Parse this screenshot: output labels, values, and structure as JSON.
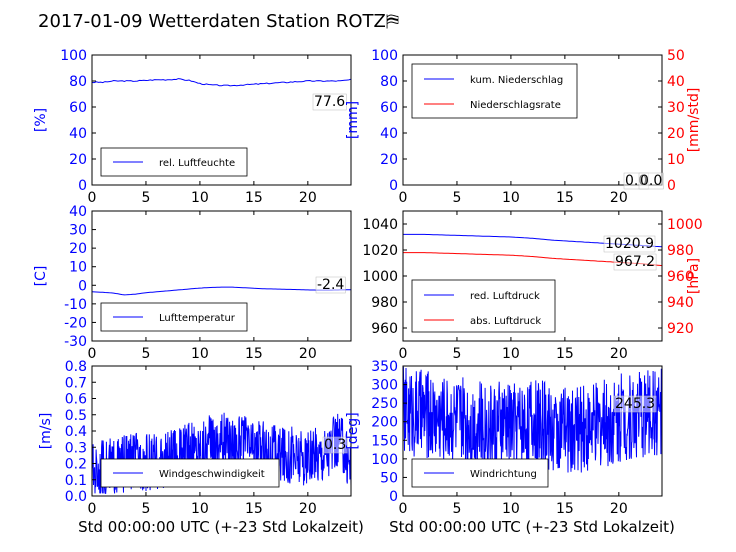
{
  "page": {
    "title": "2017-01-09 Wetterdaten Station ROTZ⛿",
    "xlabel": "Std 00:00:00 UTC (+-23 Std Lokalzeit)"
  },
  "colors": {
    "primary": "#0000ff",
    "secondary": "#ff0000",
    "axis": "#000000"
  },
  "chart_data": [
    {
      "type": "line",
      "ylabel": "[%]",
      "xlim": [
        0,
        24
      ],
      "ylim": [
        0,
        100
      ],
      "xticks": [
        0,
        5,
        10,
        15,
        20
      ],
      "yticks": [
        0,
        20,
        40,
        60,
        80,
        100
      ],
      "grid": false,
      "legend": "bottom-left",
      "series": [
        {
          "name": "rel. Luftfeuchte",
          "color": "#0000ff",
          "x": [
            0,
            1,
            2,
            3,
            4,
            5,
            6,
            7,
            8,
            9,
            10,
            11,
            12,
            13,
            14,
            15,
            16,
            17,
            18,
            19,
            20,
            21,
            22,
            23,
            24
          ],
          "y": [
            79,
            79,
            80,
            80,
            80,
            80.5,
            81,
            81,
            81.5,
            80.5,
            78,
            77,
            76.5,
            76.5,
            77,
            77.5,
            78,
            78.5,
            79,
            79.5,
            80,
            80,
            80,
            80,
            81
          ]
        }
      ],
      "annotations": [
        "77.6"
      ]
    },
    {
      "type": "line",
      "ylabel": "[mm]",
      "ylabel_right": "[mm/std]",
      "xlim": [
        0,
        24
      ],
      "ylim": [
        0,
        100
      ],
      "ylim_right": [
        0,
        50
      ],
      "xticks": [
        0,
        5,
        10,
        15,
        20
      ],
      "yticks": [
        0,
        20,
        40,
        60,
        80,
        100
      ],
      "yticks_right": [
        0,
        10,
        20,
        30,
        40,
        50
      ],
      "grid": false,
      "legend": "top-left",
      "series": [
        {
          "name": "kum. Niederschlag",
          "color": "#0000ff",
          "x": [
            0,
            24
          ],
          "y": [
            0,
            0
          ]
        },
        {
          "name": "Niederschlagsrate",
          "color": "#ff0000",
          "x": [
            0,
            24
          ],
          "y": [
            0,
            0
          ],
          "axis": "right"
        }
      ],
      "annotations": [
        "0.0",
        "0.0"
      ]
    },
    {
      "type": "line",
      "ylabel": "[C]",
      "xlim": [
        0,
        24
      ],
      "ylim": [
        -30,
        40
      ],
      "xticks": [
        0,
        5,
        10,
        15,
        20
      ],
      "yticks": [
        -30,
        -20,
        -10,
        0,
        10,
        20,
        30,
        40
      ],
      "grid": false,
      "legend": "bottom-left",
      "series": [
        {
          "name": "Lufttemperatur",
          "color": "#0000ff",
          "x": [
            0,
            1,
            2,
            3,
            4,
            5,
            6,
            7,
            8,
            9,
            10,
            11,
            12,
            13,
            14,
            15,
            16,
            17,
            18,
            19,
            20,
            21,
            22,
            23,
            24
          ],
          "y": [
            -3.5,
            -3.8,
            -4.2,
            -5.2,
            -4.8,
            -4.0,
            -3.5,
            -3.0,
            -2.5,
            -2.0,
            -1.5,
            -1.2,
            -1.0,
            -1.0,
            -1.3,
            -1.6,
            -1.9,
            -2.0,
            -2.2,
            -2.3,
            -2.5,
            -2.6,
            -2.6,
            -2.5,
            -2.4
          ]
        }
      ],
      "annotations": [
        "-2.4"
      ]
    },
    {
      "type": "line",
      "ylabel_right": "[hPa]",
      "xlim": [
        0,
        24
      ],
      "ylim": [
        950,
        1050
      ],
      "ylim_right": [
        910,
        1010
      ],
      "xticks": [
        0,
        5,
        10,
        15,
        20
      ],
      "yticks": [
        960,
        980,
        1000,
        1020,
        1040
      ],
      "yticks_right": [
        920,
        940,
        960,
        980,
        1000
      ],
      "grid": false,
      "legend": "bottom-left",
      "series": [
        {
          "name": "red. Luftdruck",
          "color": "#0000ff",
          "x": [
            0,
            2,
            4,
            6,
            8,
            10,
            12,
            14,
            16,
            18,
            20,
            22,
            24
          ],
          "y": [
            1032,
            1032,
            1031.5,
            1031,
            1030.5,
            1030,
            1029,
            1027.5,
            1026.5,
            1025.5,
            1024.5,
            1023.5,
            1022.5
          ]
        },
        {
          "name": "abs. Luftdruck",
          "color": "#ff0000",
          "axis": "right",
          "x": [
            0,
            2,
            4,
            6,
            8,
            10,
            12,
            14,
            16,
            18,
            20,
            22,
            24
          ],
          "y": [
            978,
            978,
            977.5,
            977,
            976.5,
            976,
            975,
            973.5,
            972.5,
            971.5,
            970.5,
            969.5,
            968
          ]
        }
      ],
      "annotations": [
        "1020.9",
        "967.2"
      ]
    },
    {
      "type": "line",
      "ylabel": "[m/s]",
      "xlim": [
        0,
        24
      ],
      "ylim": [
        0,
        0.8
      ],
      "xticks": [
        0,
        5,
        10,
        15,
        20
      ],
      "yticks": [
        0.0,
        0.1,
        0.2,
        0.3,
        0.4,
        0.5,
        0.6,
        0.7,
        0.8
      ],
      "grid": false,
      "legend": "bottom-left",
      "series": [
        {
          "name": "Windgeschwindigkeit",
          "color": "#0000ff",
          "noisy": true,
          "x": [
            0,
            2,
            4,
            6,
            8,
            10,
            12,
            14,
            16,
            18,
            20,
            22,
            23,
            24
          ],
          "y": [
            0.15,
            0.18,
            0.22,
            0.2,
            0.25,
            0.3,
            0.35,
            0.32,
            0.28,
            0.26,
            0.22,
            0.3,
            0.35,
            0.2
          ],
          "amplitude": 0.18
        }
      ],
      "annotations": [
        "0.3"
      ]
    },
    {
      "type": "line",
      "ylabel": "[deg]",
      "xlim": [
        0,
        24
      ],
      "ylim": [
        0,
        350
      ],
      "xticks": [
        0,
        5,
        10,
        15,
        20
      ],
      "yticks": [
        0,
        50,
        100,
        150,
        200,
        250,
        300,
        350
      ],
      "grid": false,
      "legend": "bottom-left",
      "series": [
        {
          "name": "Windrichtung",
          "color": "#0000ff",
          "noisy": true,
          "x": [
            0,
            2,
            4,
            6,
            8,
            10,
            12,
            14,
            16,
            18,
            20,
            22,
            24
          ],
          "y": [
            230,
            220,
            210,
            200,
            190,
            195,
            200,
            180,
            175,
            190,
            210,
            220,
            230
          ],
          "amplitude": 120
        }
      ],
      "annotations": [
        "245.3"
      ]
    }
  ]
}
